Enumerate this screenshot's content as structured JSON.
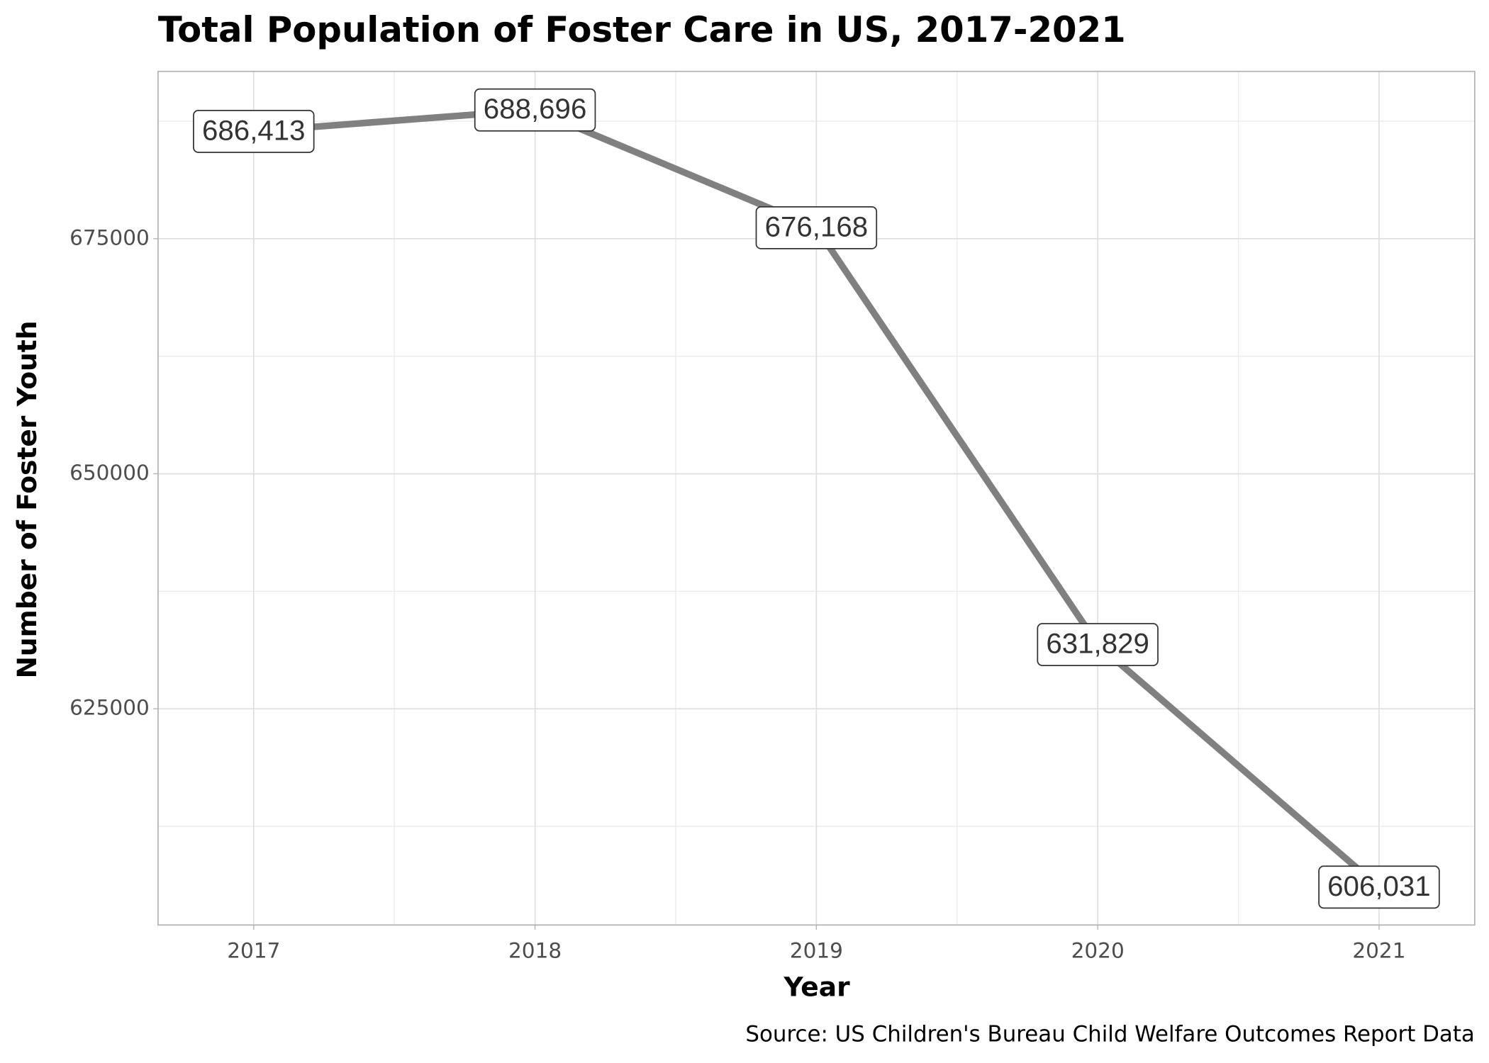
{
  "chart_data": {
    "type": "line",
    "title": "Total Population of Foster Care in US, 2017-2021",
    "x_label": "Year",
    "y_label": "Number of Foster Youth",
    "caption": "Source: US Children's Bureau Child Welfare Outcomes Report Data",
    "x": [
      2017,
      2018,
      2019,
      2020,
      2021
    ],
    "series": [
      {
        "color": "#808080",
        "values": [
          686413,
          688696,
          676168,
          631829,
          606031
        ],
        "value_labels": [
          "686,413",
          "688,696",
          "676,168",
          "631,829",
          "606,031"
        ]
      }
    ],
    "xlim": [
      2016.66,
      2021.34
    ],
    "xticks": [
      2017,
      2018,
      2019,
      2020,
      2021
    ],
    "ylim": [
      602000,
      692800
    ],
    "yticks": [
      625000,
      650000,
      675000
    ],
    "grid": true
  }
}
